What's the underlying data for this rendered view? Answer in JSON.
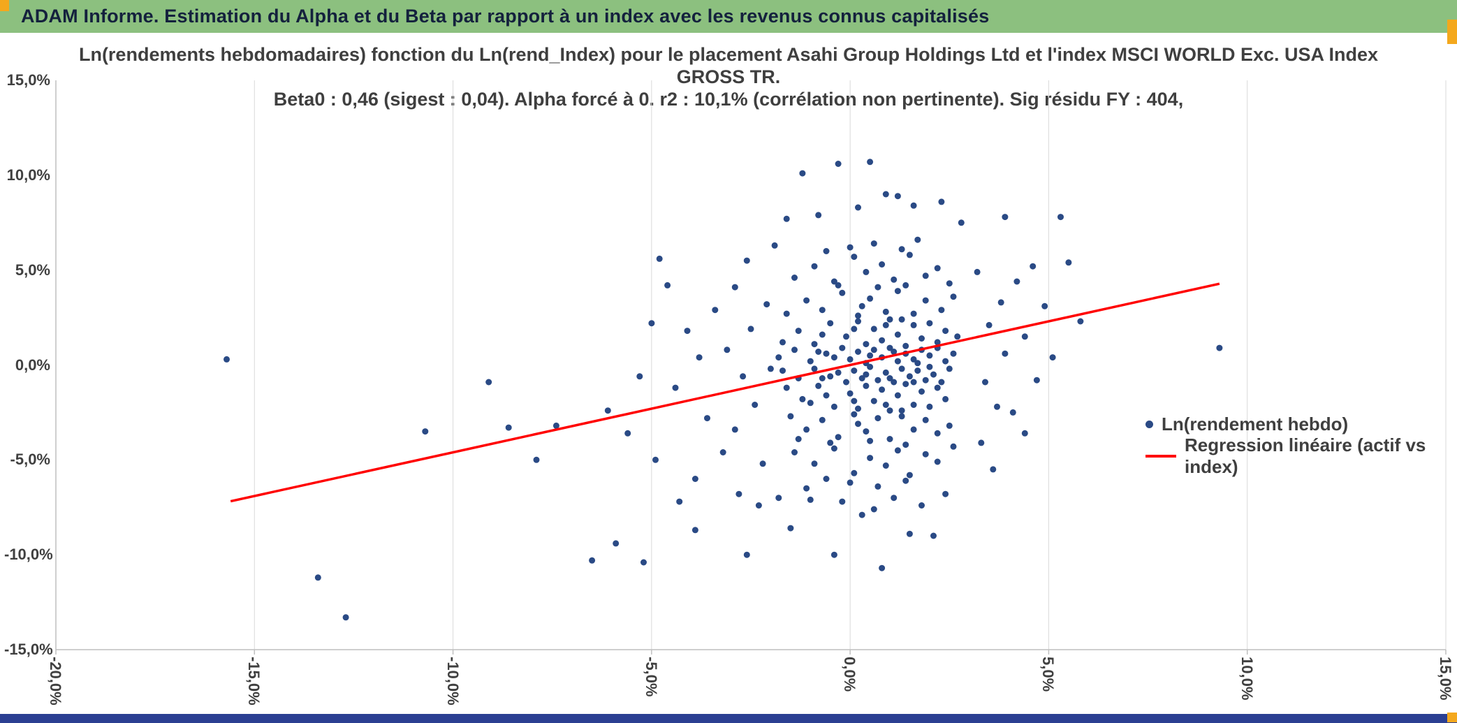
{
  "header": {
    "title": "ADAM Informe. Estimation du Alpha et du Beta par rapport à un index avec les revenus connus capitalisés"
  },
  "colors": {
    "green": "#8CC07F",
    "orange": "#F4A81D",
    "navy": "#2B3F92",
    "point": "#2A4A85",
    "regression": "#FF0000",
    "grid": "#D9D9D9",
    "axis": "#BFBFBF",
    "title_text": "#3F3F3F"
  },
  "chart_data": {
    "type": "scatter",
    "title_lines": [
      "Ln(rendements hebdomadaires) fonction du Ln(rend_Index) pour le placement Asahi Group Holdings Ltd et l'index MSCI WORLD Exc. USA Index",
      "GROSS TR.",
      "Beta0 : 0,46 (sigest : 0,04). Alpha forcé à 0. r2 : 10,1% (corrélation non pertinente). Sig résidu FY : 404,"
    ],
    "xlabel": "",
    "ylabel": "",
    "xlim": [
      -20,
      15
    ],
    "ylim": [
      -15,
      15
    ],
    "grid": "vertical-only",
    "legend_position": "inside-right",
    "x_tick_values": [
      -20,
      -15,
      -10,
      -5,
      0,
      5,
      10,
      15
    ],
    "x_tick_labels": [
      "-20,0%",
      "-15,0%",
      "-10,0%",
      "-5,0%",
      "0,0%",
      "5,0%",
      "10,0%",
      "15,0%"
    ],
    "y_tick_values": [
      15,
      10,
      5,
      0,
      -5,
      -10,
      -15
    ],
    "y_tick_labels": [
      "15,0%",
      "10,0%",
      "5,0%",
      "0,0%",
      "-5,0%",
      "-10,0%",
      "-15,0%"
    ],
    "regression_stats": {
      "beta0": "0,46",
      "sigest": "0,04",
      "alpha": "forcé à 0",
      "r2": "10,1%",
      "sig_residu_FY": "404,"
    },
    "series": [
      {
        "name": "Ln(rendement hebdo)",
        "type": "scatter",
        "color": "#2A4A85",
        "points": [
          [
            -15.7,
            0.3
          ],
          [
            -13.4,
            -11.2
          ],
          [
            -12.7,
            -13.3
          ],
          [
            -10.7,
            -3.5
          ],
          [
            -9.1,
            -0.9
          ],
          [
            -8.6,
            -3.3
          ],
          [
            -7.9,
            -5.0
          ],
          [
            -7.4,
            -3.2
          ],
          [
            -6.5,
            -10.3
          ],
          [
            -5.9,
            -9.4
          ],
          [
            -5.2,
            -10.4
          ],
          [
            -4.8,
            5.6
          ],
          [
            -4.6,
            4.2
          ],
          [
            -4.9,
            -5.0
          ],
          [
            -5.6,
            -3.6
          ],
          [
            -6.1,
            -2.4
          ],
          [
            -5.3,
            -0.6
          ],
          [
            -5.0,
            2.2
          ],
          [
            -4.3,
            -7.2
          ],
          [
            -3.9,
            -8.7
          ],
          [
            -2.6,
            -10.0
          ],
          [
            -0.4,
            -10.0
          ],
          [
            0.8,
            -10.7
          ],
          [
            2.1,
            -9.0
          ],
          [
            1.5,
            -8.9
          ],
          [
            -1.5,
            -8.6
          ],
          [
            9.3,
            0.9
          ],
          [
            5.3,
            7.8
          ],
          [
            3.9,
            7.8
          ],
          [
            -1.2,
            10.1
          ],
          [
            0.5,
            10.7
          ],
          [
            -0.3,
            10.6
          ],
          [
            0.9,
            9.0
          ],
          [
            1.2,
            8.9
          ],
          [
            1.6,
            8.4
          ],
          [
            0.2,
            8.3
          ],
          [
            2.3,
            8.6
          ],
          [
            -0.8,
            7.9
          ],
          [
            -1.6,
            7.7
          ],
          [
            2.8,
            7.5
          ],
          [
            4.6,
            5.2
          ],
          [
            5.5,
            5.4
          ],
          [
            4.2,
            4.4
          ],
          [
            4.9,
            3.1
          ],
          [
            5.8,
            2.3
          ],
          [
            4.4,
            1.5
          ],
          [
            5.1,
            0.4
          ],
          [
            4.7,
            -0.8
          ],
          [
            4.1,
            -2.5
          ],
          [
            4.4,
            -3.6
          ],
          [
            3.6,
            -5.5
          ],
          [
            3.2,
            4.9
          ],
          [
            3.8,
            3.3
          ],
          [
            3.5,
            2.1
          ],
          [
            3.9,
            0.6
          ],
          [
            3.4,
            -0.9
          ],
          [
            3.7,
            -2.2
          ],
          [
            3.3,
            -4.1
          ],
          [
            -4.1,
            1.8
          ],
          [
            -3.8,
            0.4
          ],
          [
            -4.4,
            -1.2
          ],
          [
            -3.6,
            -2.8
          ],
          [
            -3.2,
            -4.6
          ],
          [
            -3.9,
            -6.0
          ],
          [
            -2.8,
            -6.8
          ],
          [
            -3.4,
            2.9
          ],
          [
            -2.9,
            4.1
          ],
          [
            -2.6,
            5.5
          ],
          [
            -3.1,
            0.8
          ],
          [
            -2.7,
            -0.6
          ],
          [
            -2.4,
            -2.1
          ],
          [
            -2.9,
            -3.4
          ],
          [
            -2.2,
            -5.2
          ],
          [
            -2.5,
            1.9
          ],
          [
            -2.1,
            3.2
          ],
          [
            -2.3,
            -7.4
          ],
          [
            -1.9,
            6.3
          ],
          [
            -2.0,
            -0.2
          ],
          [
            -1.4,
            4.6
          ],
          [
            -0.9,
            5.2
          ],
          [
            -0.4,
            4.4
          ],
          [
            0.1,
            5.7
          ],
          [
            0.4,
            4.9
          ],
          [
            0.8,
            5.3
          ],
          [
            1.1,
            4.5
          ],
          [
            1.5,
            5.8
          ],
          [
            1.9,
            4.7
          ],
          [
            2.2,
            5.1
          ],
          [
            0.0,
            6.2
          ],
          [
            0.6,
            6.4
          ],
          [
            1.3,
            6.1
          ],
          [
            -0.6,
            6.0
          ],
          [
            2.5,
            4.3
          ],
          [
            1.7,
            6.6
          ],
          [
            -1.6,
            2.7
          ],
          [
            -1.1,
            3.4
          ],
          [
            -0.7,
            2.9
          ],
          [
            -0.2,
            3.8
          ],
          [
            0.2,
            2.6
          ],
          [
            0.5,
            3.5
          ],
          [
            0.9,
            2.8
          ],
          [
            1.2,
            3.9
          ],
          [
            1.6,
            2.7
          ],
          [
            1.9,
            3.4
          ],
          [
            2.3,
            2.9
          ],
          [
            2.6,
            3.6
          ],
          [
            0.7,
            4.1
          ],
          [
            -0.3,
            4.2
          ],
          [
            1.4,
            4.2
          ],
          [
            0.3,
            3.1
          ],
          [
            -1.7,
            1.2
          ],
          [
            -1.3,
            1.8
          ],
          [
            -0.9,
            1.1
          ],
          [
            -0.5,
            2.2
          ],
          [
            -0.1,
            1.5
          ],
          [
            0.2,
            2.3
          ],
          [
            0.4,
            1.1
          ],
          [
            0.6,
            1.9
          ],
          [
            0.8,
            1.3
          ],
          [
            1.0,
            2.4
          ],
          [
            1.2,
            1.6
          ],
          [
            1.4,
            1.0
          ],
          [
            1.6,
            2.1
          ],
          [
            1.8,
            1.4
          ],
          [
            2.0,
            2.2
          ],
          [
            2.2,
            1.2
          ],
          [
            2.4,
            1.8
          ],
          [
            2.7,
            1.5
          ],
          [
            0.1,
            1.9
          ],
          [
            -0.7,
            1.6
          ],
          [
            0.9,
            2.1
          ],
          [
            1.3,
            2.4
          ],
          [
            -1.8,
            0.4
          ],
          [
            -1.4,
            0.8
          ],
          [
            -1.0,
            0.2
          ],
          [
            -0.6,
            0.6
          ],
          [
            -0.2,
            0.9
          ],
          [
            0.0,
            0.3
          ],
          [
            0.2,
            0.7
          ],
          [
            0.4,
            0.1
          ],
          [
            0.6,
            0.8
          ],
          [
            0.8,
            0.4
          ],
          [
            1.0,
            0.9
          ],
          [
            1.2,
            0.2
          ],
          [
            1.4,
            0.6
          ],
          [
            1.6,
            0.3
          ],
          [
            1.8,
            0.8
          ],
          [
            2.0,
            0.5
          ],
          [
            2.2,
            0.9
          ],
          [
            2.4,
            0.2
          ],
          [
            2.6,
            0.6
          ],
          [
            -0.4,
            0.4
          ],
          [
            -0.8,
            0.7
          ],
          [
            0.5,
            0.5
          ],
          [
            1.1,
            0.7
          ],
          [
            1.7,
            0.1
          ],
          [
            -1.7,
            -0.3
          ],
          [
            -1.3,
            -0.7
          ],
          [
            -0.9,
            -0.2
          ],
          [
            -0.5,
            -0.6
          ],
          [
            -0.1,
            -0.9
          ],
          [
            0.1,
            -0.3
          ],
          [
            0.3,
            -0.7
          ],
          [
            0.5,
            -0.1
          ],
          [
            0.7,
            -0.8
          ],
          [
            0.9,
            -0.4
          ],
          [
            1.1,
            -0.9
          ],
          [
            1.3,
            -0.2
          ],
          [
            1.5,
            -0.6
          ],
          [
            1.7,
            -0.3
          ],
          [
            1.9,
            -0.8
          ],
          [
            2.1,
            -0.5
          ],
          [
            2.3,
            -0.9
          ],
          [
            2.5,
            -0.2
          ],
          [
            -0.3,
            -0.4
          ],
          [
            -0.7,
            -0.7
          ],
          [
            0.4,
            -0.5
          ],
          [
            1.0,
            -0.7
          ],
          [
            1.6,
            -0.9
          ],
          [
            2.0,
            -0.1
          ],
          [
            -1.6,
            -1.2
          ],
          [
            -1.2,
            -1.8
          ],
          [
            -0.8,
            -1.1
          ],
          [
            -0.4,
            -2.2
          ],
          [
            0.0,
            -1.5
          ],
          [
            0.2,
            -2.3
          ],
          [
            0.4,
            -1.1
          ],
          [
            0.6,
            -1.9
          ],
          [
            0.8,
            -1.3
          ],
          [
            1.0,
            -2.4
          ],
          [
            1.2,
            -1.6
          ],
          [
            1.4,
            -1.0
          ],
          [
            1.6,
            -2.1
          ],
          [
            1.8,
            -1.4
          ],
          [
            2.0,
            -2.2
          ],
          [
            2.2,
            -1.2
          ],
          [
            2.4,
            -1.8
          ],
          [
            0.1,
            -1.9
          ],
          [
            -0.6,
            -1.6
          ],
          [
            0.9,
            -2.1
          ],
          [
            1.3,
            -2.4
          ],
          [
            -1.0,
            -2.0
          ],
          [
            -1.5,
            -2.7
          ],
          [
            -1.1,
            -3.4
          ],
          [
            -0.7,
            -2.9
          ],
          [
            -0.3,
            -3.8
          ],
          [
            0.1,
            -2.6
          ],
          [
            0.4,
            -3.5
          ],
          [
            0.7,
            -2.8
          ],
          [
            1.0,
            -3.9
          ],
          [
            1.3,
            -2.7
          ],
          [
            1.6,
            -3.4
          ],
          [
            1.9,
            -2.9
          ],
          [
            2.2,
            -3.6
          ],
          [
            0.5,
            -4.0
          ],
          [
            -0.5,
            -4.1
          ],
          [
            1.4,
            -4.2
          ],
          [
            0.2,
            -3.1
          ],
          [
            2.5,
            -3.2
          ],
          [
            -1.3,
            -3.9
          ],
          [
            -1.4,
            -4.6
          ],
          [
            -0.9,
            -5.2
          ],
          [
            -0.4,
            -4.4
          ],
          [
            0.1,
            -5.7
          ],
          [
            0.5,
            -4.9
          ],
          [
            0.9,
            -5.3
          ],
          [
            1.2,
            -4.5
          ],
          [
            1.5,
            -5.8
          ],
          [
            1.9,
            -4.7
          ],
          [
            2.2,
            -5.1
          ],
          [
            0.0,
            -6.2
          ],
          [
            0.7,
            -6.4
          ],
          [
            1.4,
            -6.1
          ],
          [
            -0.6,
            -6.0
          ],
          [
            2.6,
            -4.3
          ],
          [
            -1.1,
            -6.5
          ],
          [
            -0.2,
            -7.2
          ],
          [
            0.6,
            -7.6
          ],
          [
            1.1,
            -7.0
          ],
          [
            1.8,
            -7.4
          ],
          [
            -1.0,
            -7.1
          ],
          [
            2.4,
            -6.8
          ],
          [
            0.3,
            -7.9
          ],
          [
            -1.8,
            -7.0
          ]
        ]
      },
      {
        "name": "Regression linéaire (actif vs index)",
        "type": "line",
        "color": "#FF0000",
        "points": [
          [
            -15.6,
            -7.18
          ],
          [
            9.3,
            4.28
          ]
        ]
      }
    ]
  }
}
